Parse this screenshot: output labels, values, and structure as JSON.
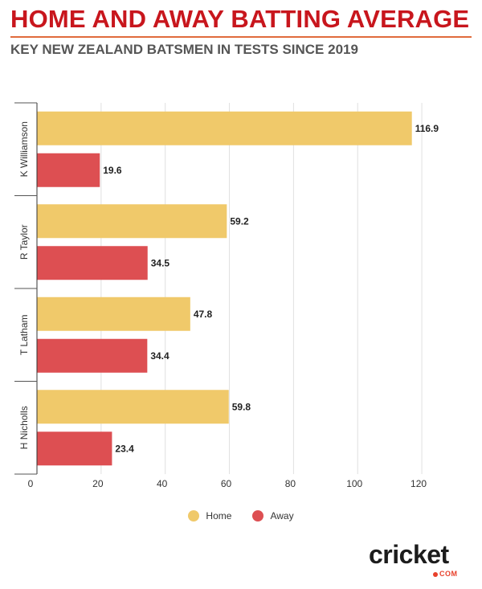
{
  "header": {
    "title": "HOME AND AWAY BATTING AVERAGE",
    "subtitle": "KEY NEW ZEALAND BATSMEN IN TESTS SINCE 2019"
  },
  "legend": {
    "items": [
      {
        "label": "Home",
        "color": "#f0c96a"
      },
      {
        "label": "Away",
        "color": "#dd4f52"
      }
    ]
  },
  "logo": {
    "word": "cricket",
    "sub": "COM"
  },
  "chart_data": {
    "type": "bar",
    "orientation": "horizontal",
    "categories": [
      "K Williamson",
      "R Taylor",
      "T Latham",
      "H Nicholls"
    ],
    "series": [
      {
        "name": "Home",
        "values": [
          116.9,
          59.2,
          47.8,
          59.8
        ],
        "color": "#f0c96a"
      },
      {
        "name": "Away",
        "values": [
          19.6,
          34.5,
          34.4,
          23.4
        ],
        "color": "#dd4f52"
      }
    ],
    "x_ticks": [
      0,
      20,
      40,
      60,
      80,
      100,
      120
    ],
    "xlim": [
      0,
      130
    ],
    "grid": true,
    "legend_position": "bottom"
  }
}
